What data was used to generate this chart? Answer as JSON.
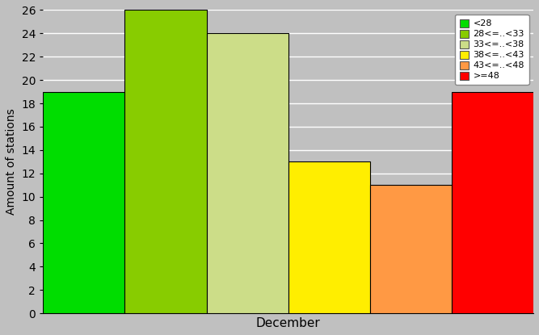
{
  "bars": [
    {
      "label": "<28",
      "value": 19,
      "color": "#00dd00"
    },
    {
      "label": "28<=..<33",
      "value": 26,
      "color": "#88cc00"
    },
    {
      "label": "33<=..<38",
      "value": 24,
      "color": "#ccdd88"
    },
    {
      "label": "38<=..<43",
      "value": 13,
      "color": "#ffee00"
    },
    {
      "label": "43<=..<48",
      "value": 11,
      "color": "#ff9944"
    },
    {
      "label": ">=48",
      "value": 19,
      "color": "#ff0000"
    }
  ],
  "ylabel": "Amount of stations",
  "xlabel": "December",
  "ylim": [
    0,
    26
  ],
  "yticks": [
    0,
    2,
    4,
    6,
    8,
    10,
    12,
    14,
    16,
    18,
    20,
    22,
    24,
    26
  ],
  "background_color": "#c0c0c0",
  "plot_bg_color": "#c0c0c0",
  "grid_color": "#ffffff",
  "bar_edge_color": "#000000"
}
